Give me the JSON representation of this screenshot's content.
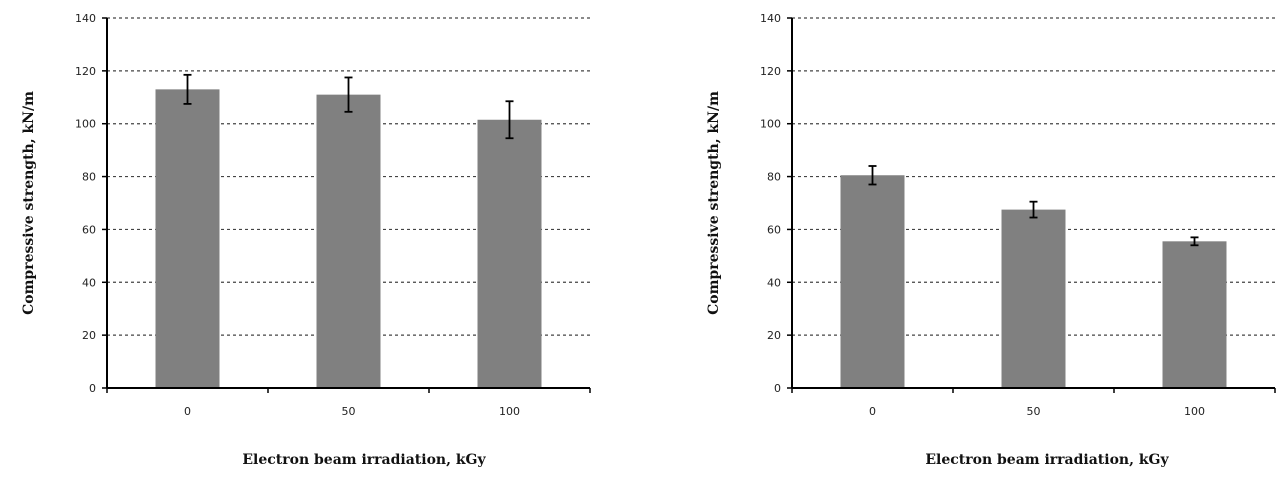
{
  "chart_data": [
    {
      "type": "bar",
      "categories": [
        "0",
        "50",
        "100"
      ],
      "values": [
        113,
        111,
        101.5
      ],
      "errors": [
        5.5,
        6.5,
        7
      ],
      "xlabel": "Electron beam irradiation, kGy",
      "ylabel": "Compressive strength, kN/m",
      "ylim": [
        0,
        140
      ],
      "yticks": [
        "0",
        "20",
        "40",
        "60",
        "80",
        "100",
        "120",
        "140"
      ],
      "grid": true,
      "bar_color": "#808080"
    },
    {
      "type": "bar",
      "categories": [
        "0",
        "50",
        "100"
      ],
      "values": [
        80.5,
        67.5,
        55.5
      ],
      "errors": [
        3.5,
        3,
        1.5
      ],
      "xlabel": "Electron beam irradiation, kGy",
      "ylabel": "Compressive strength, kN/m",
      "ylim": [
        0,
        140
      ],
      "yticks": [
        "0",
        "20",
        "40",
        "60",
        "80",
        "100",
        "120",
        "140"
      ],
      "grid": true,
      "bar_color": "#808080"
    }
  ]
}
